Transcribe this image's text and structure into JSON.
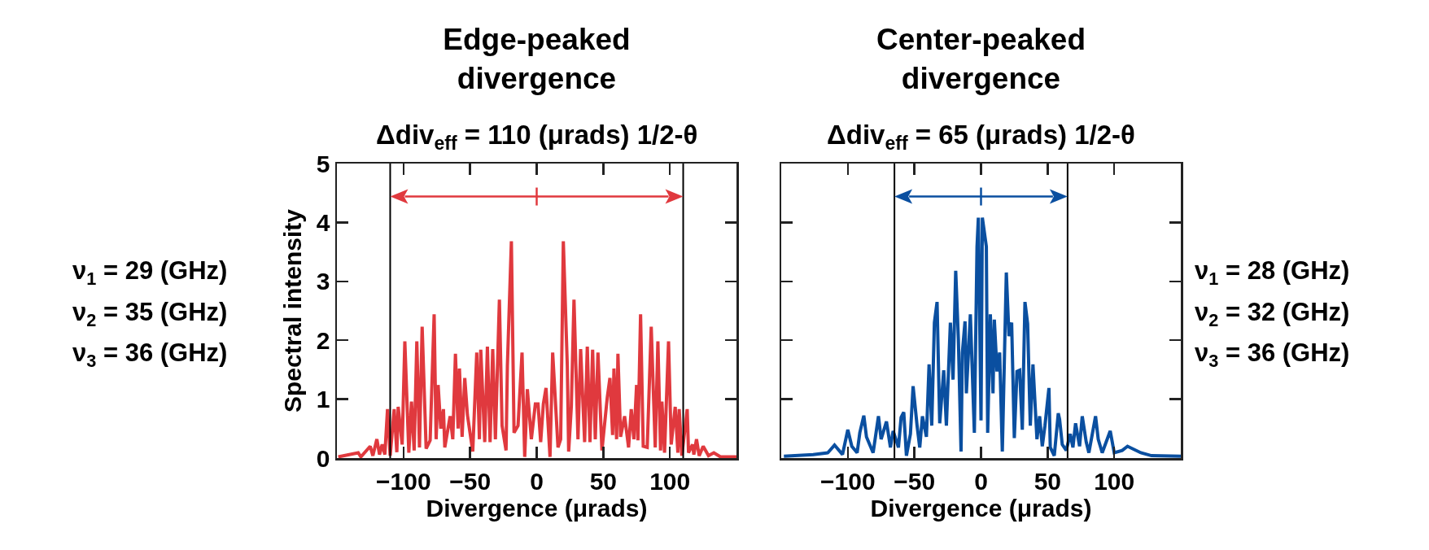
{
  "chart_data": [
    {
      "type": "line",
      "title": "Edge-peaked divergence",
      "subtitle": "Δdiv$_{eff}$ = 110 (μrads) 1/2-θ",
      "xlabel": "Divergence (μrads)",
      "ylabel": "Spectral intensity",
      "annotations": [
        "ν$_{1}$ = 29 (GHz)",
        "ν$_{2}$ = 35 (GHz)",
        "ν$_{3}$ = 36 (GHz)"
      ],
      "series": [
        {
          "color": "#e0393e",
          "x": [
            -149,
            -134,
            -132,
            -125,
            -123,
            -120,
            -118,
            -116,
            -114,
            -112,
            -110,
            -107,
            -105,
            -104,
            -101,
            -99,
            -96,
            -94,
            -92,
            -90,
            -88,
            -86,
            -83,
            -80,
            -77,
            -75.5,
            -74,
            -72,
            -70,
            -69,
            -65,
            -63,
            -61,
            -59,
            -58,
            -56,
            -54,
            -52,
            -48,
            -45,
            -43,
            -42,
            -39,
            -37,
            -35,
            -33,
            -31,
            -28,
            -26,
            -23,
            -22,
            -19,
            -17,
            -14,
            -11,
            -9,
            -7,
            -4,
            -1,
            1,
            3,
            5,
            7,
            10,
            12,
            16,
            18,
            20,
            23,
            24,
            26,
            28,
            31,
            33,
            36,
            38,
            40,
            42,
            44,
            46,
            49,
            53,
            55,
            57,
            58,
            60,
            61,
            63,
            66,
            69,
            71,
            73,
            75,
            76,
            78,
            80,
            83,
            86,
            89,
            91,
            93,
            94,
            96,
            99,
            101,
            104,
            106,
            107,
            109,
            113,
            114,
            117,
            118,
            120,
            122,
            125,
            129,
            133,
            138,
            150
          ],
          "values": [
            0.02,
            0.09,
            0.02,
            0.2,
            0.04,
            0.32,
            0.06,
            0.23,
            0.06,
            0.83,
            0.04,
            0.83,
            0.1,
            0.87,
            0.23,
            1.98,
            0.09,
            0.96,
            0.13,
            1.98,
            0.18,
            2.23,
            0.16,
            0.3,
            2.44,
            0.32,
            1.24,
            0.5,
            0.83,
            0.18,
            0.71,
            0.32,
            1.77,
            0.5,
            1.52,
            0.36,
            1.36,
            0.73,
            0.11,
            1.79,
            0.32,
            1.84,
            0.27,
            1.89,
            0.27,
            1.85,
            0.32,
            2.69,
            0.55,
            0.13,
            1.56,
            3.68,
            0.43,
            0.55,
            1.79,
            0.02,
            1.17,
            0.32,
            0.92,
            0.92,
            0.27,
            0.92,
            1.19,
            0.02,
            1.79,
            0.18,
            0.32,
            3.68,
            1.56,
            0.11,
            0.87,
            2.69,
            0.32,
            1.85,
            0.27,
            1.89,
            0.27,
            1.84,
            0.32,
            1.79,
            0.13,
            1.03,
            1.36,
            0.39,
            1.52,
            0.32,
            1.77,
            0.36,
            0.71,
            0.18,
            0.83,
            0.32,
            1.24,
            0.3,
            2.44,
            0.2,
            0.18,
            2.23,
            0.18,
            1.98,
            0.13,
            0.96,
            0.09,
            1.98,
            0.23,
            0.87,
            0.09,
            0.83,
            0.04,
            0.83,
            0.09,
            0.23,
            0.06,
            0.32,
            0.04,
            0.2,
            0.04,
            0.09,
            0.02,
            0.02
          ]
        }
      ],
      "ref_lines": [
        {
          "axis": "x",
          "value": -110,
          "color": "#000000"
        },
        {
          "axis": "x",
          "value": 110,
          "color": "#000000"
        }
      ],
      "xlim": [
        -150,
        150
      ],
      "xticks": [
        -100,
        -50,
        0,
        50,
        100
      ],
      "ylim": [
        0,
        5
      ],
      "yticks": [
        0,
        1,
        2,
        3,
        4,
        5
      ],
      "grid": false,
      "marker": "none",
      "line_style": "solid"
    },
    {
      "type": "line",
      "title": "Center-peaked divergence",
      "subtitle": "Δdiv$_{eff}$ = 65 (μrads) 1/2-θ",
      "xlabel": "Divergence (μrads)",
      "annotations": [
        "ν$_{1}$ = 28 (GHz)",
        "ν$_{2}$ = 32 (GHz)",
        "ν$_{3}$ = 36 (GHz)"
      ],
      "series": [
        {
          "color": "#0a4fa0",
          "x": [
            -148,
            -126,
            -115,
            -110,
            -104,
            -100,
            -97,
            -93,
            -91,
            -88,
            -86,
            -81,
            -77,
            -75,
            -71,
            -68,
            -66,
            -62,
            -60,
            -58,
            -56,
            -53,
            -51,
            -48,
            -46,
            -44,
            -41,
            -39,
            -37,
            -35,
            -33,
            -31,
            -28,
            -26,
            -23,
            -21,
            -19,
            -17,
            -15,
            -14,
            -12,
            -11,
            -8,
            -5,
            -3,
            -2,
            0,
            1,
            4,
            5,
            7,
            9,
            10,
            12,
            14,
            16,
            19,
            21,
            23,
            25,
            27,
            29,
            31,
            33,
            35,
            37,
            39,
            42,
            44,
            46,
            48,
            51,
            52,
            55,
            58,
            59,
            61,
            64,
            67,
            69,
            71,
            74,
            76,
            79,
            81,
            86,
            88,
            91,
            97,
            100,
            106,
            110,
            120,
            128,
            150
          ],
          "values": [
            0.03,
            0.06,
            0.09,
            0.22,
            0.06,
            0.48,
            0.2,
            0.09,
            0.43,
            0.72,
            0.36,
            0.09,
            0.71,
            0.32,
            0.62,
            0.18,
            0.46,
            0.18,
            0.69,
            0.78,
            0.04,
            0.41,
            1.22,
            0.55,
            0.18,
            0.71,
            0.36,
            1.59,
            0.55,
            2.3,
            2.65,
            0.59,
            1.49,
            0.55,
            2.3,
            1.33,
            3.18,
            2.02,
            0.11,
            1.79,
            2.32,
            1.1,
            2.44,
            0.43,
            3.59,
            4.08,
            0.64,
            4.08,
            3.59,
            0.43,
            2.44,
            1.1,
            2.35,
            1.47,
            1.79,
            0.11,
            3.15,
            2.07,
            2.3,
            0.34,
            1.47,
            1.49,
            0.48,
            2.65,
            2.28,
            0.55,
            1.59,
            0.32,
            0.71,
            0.2,
            0.55,
            1.19,
            0.18,
            0.04,
            0.76,
            0.66,
            0.23,
            0.13,
            0.41,
            0.18,
            0.59,
            0.2,
            0.71,
            0.27,
            0.09,
            0.71,
            0.32,
            0.09,
            0.46,
            0.09,
            0.13,
            0.2,
            0.09,
            0.04,
            0.03
          ]
        }
      ],
      "ref_lines": [
        {
          "axis": "x",
          "value": -65,
          "color": "#000000"
        },
        {
          "axis": "x",
          "value": 65,
          "color": "#000000"
        }
      ],
      "xlim": [
        -150,
        150
      ],
      "xticks": [
        -100,
        -50,
        0,
        50,
        100
      ],
      "ylim": [
        0,
        5
      ],
      "yticks": [
        0,
        1,
        2,
        3,
        4,
        5
      ],
      "tick_labels": "x",
      "grid": false,
      "marker": "none",
      "line_style": "solid"
    }
  ]
}
